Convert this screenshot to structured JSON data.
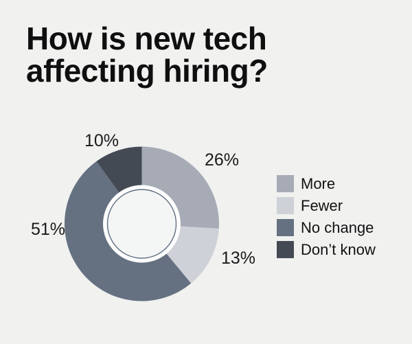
{
  "title": "How is new tech affecting hiring?",
  "colors": {
    "background": "#f1f1f0",
    "text": "#121212",
    "hole_ring_fill": "#fdfdfd",
    "inner_circle_fill": "#f4f5f5",
    "inner_circle_stroke": "#5f6f81"
  },
  "chart_data": {
    "type": "pie",
    "variant": "donut",
    "title": "How is new tech affecting hiring?",
    "direction": "clockwise",
    "start_angle_deg": 0,
    "legend_position": "right",
    "slices": [
      {
        "label": "More",
        "value": 26,
        "display": "26%",
        "color": "#a6abb6"
      },
      {
        "label": "Fewer",
        "value": 13,
        "display": "13%",
        "color": "#ced1d7"
      },
      {
        "label": "No change",
        "value": 51,
        "display": "51%",
        "color": "#657181"
      },
      {
        "label": "Don’t know",
        "value": 10,
        "display": "10%",
        "color": "#434a54"
      }
    ]
  }
}
